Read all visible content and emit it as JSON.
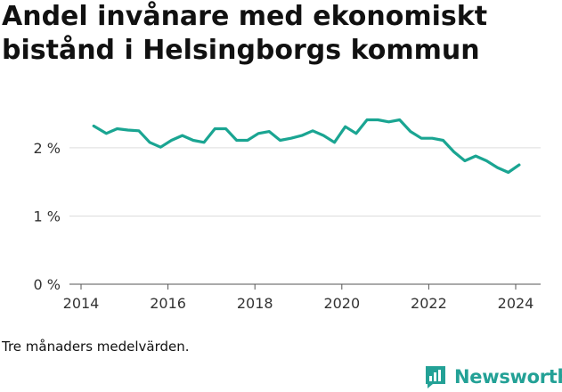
{
  "title": "Andel invånare med ekonomiskt bistånd i Helsingborgs kommun",
  "note": "Tre månaders medelvärden.",
  "brand": {
    "name": "Newsworthy",
    "logo_icon": "newsworthy-logo-icon",
    "color": "#23a196"
  },
  "chart_data": {
    "type": "line",
    "title": "Andel invånare med ekonomiskt bistånd i Helsingborgs kommun",
    "xlabel": "",
    "ylabel": "",
    "line_color": "#1aa592",
    "grid": true,
    "xlim": [
      2013.9,
      2024.4
    ],
    "ylim": [
      0,
      2.6
    ],
    "x_ticks": [
      2014,
      2016,
      2018,
      2020,
      2022,
      2024
    ],
    "x_tick_labels": [
      "2014",
      "2016",
      "2018",
      "2020",
      "2022",
      "2024"
    ],
    "y_ticks": [
      0,
      1,
      2
    ],
    "y_tick_labels": [
      "0 %",
      "1 %",
      "2 %"
    ],
    "series": [
      {
        "x": [
          2014.29,
          2014.58,
          2014.83,
          2015.08,
          2015.33,
          2015.58,
          2015.83,
          2016.08,
          2016.33,
          2016.58,
          2016.83,
          2017.08,
          2017.33,
          2017.58,
          2017.83,
          2018.08,
          2018.33,
          2018.58,
          2018.83,
          2019.08,
          2019.33,
          2019.58,
          2019.83,
          2020.08,
          2020.33,
          2020.58,
          2020.83,
          2021.08,
          2021.33,
          2021.58,
          2021.83,
          2022.08,
          2022.33,
          2022.58,
          2022.83,
          2023.08,
          2023.33,
          2023.58,
          2023.83,
          2024.08
        ],
        "values": [
          2.32,
          2.21,
          2.28,
          2.26,
          2.25,
          2.08,
          2.01,
          2.11,
          2.18,
          2.11,
          2.08,
          2.28,
          2.28,
          2.11,
          2.11,
          2.21,
          2.24,
          2.11,
          2.14,
          2.18,
          2.25,
          2.18,
          2.08,
          2.31,
          2.21,
          2.41,
          2.41,
          2.38,
          2.41,
          2.24,
          2.14,
          2.14,
          2.11,
          1.94,
          1.81,
          1.88,
          1.81,
          1.71,
          1.64,
          1.75
        ]
      }
    ]
  }
}
